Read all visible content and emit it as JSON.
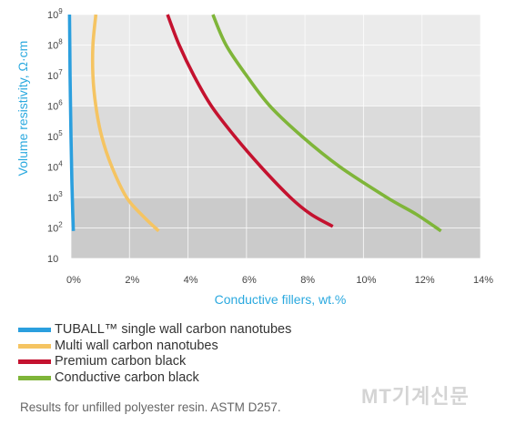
{
  "chart_data": {
    "type": "line",
    "title": "",
    "xlabel": "Conductive fillers, wt.%",
    "ylabel": "Volume resistivity, Ω·cm",
    "xlim": [
      0,
      14
    ],
    "ylim_log10": [
      1,
      9
    ],
    "y_scale": "log",
    "x_ticks": [
      "0%",
      "2%",
      "4%",
      "6%",
      "8%",
      "10%",
      "12%",
      "14%"
    ],
    "y_ticks": [
      {
        "base": "10",
        "exp": ""
      },
      {
        "base": "10",
        "exp": "2"
      },
      {
        "base": "10",
        "exp": "3"
      },
      {
        "base": "10",
        "exp": "4"
      },
      {
        "base": "10",
        "exp": "5"
      },
      {
        "base": "10",
        "exp": "6"
      },
      {
        "base": "10",
        "exp": "7"
      },
      {
        "base": "10",
        "exp": "8"
      },
      {
        "base": "10",
        "exp": "9"
      }
    ],
    "bands": [
      {
        "from": 1,
        "to": 3,
        "color": "#cbcbcb"
      },
      {
        "from": 3,
        "to": 6,
        "color": "#dbdbdb"
      },
      {
        "from": 6,
        "to": 9,
        "color": "#ebebeb"
      }
    ],
    "grid": true,
    "legend_position": "bottom",
    "series": [
      {
        "name": "TUBALL™ single wall carbon nanotubes",
        "color": "#2b9fde",
        "points": [
          [
            -0.05,
            9.0
          ],
          [
            -0.03,
            7.0
          ],
          [
            0.0,
            5.0
          ],
          [
            0.03,
            3.5
          ],
          [
            0.06,
            2.5
          ],
          [
            0.08,
            1.9
          ]
        ]
      },
      {
        "name": "Multi wall carbon nanotubes",
        "color": "#f5c462",
        "points": [
          [
            0.85,
            9.0
          ],
          [
            0.75,
            8.0
          ],
          [
            0.75,
            7.0
          ],
          [
            0.85,
            6.0
          ],
          [
            1.05,
            5.0
          ],
          [
            1.4,
            4.0
          ],
          [
            1.9,
            3.0
          ],
          [
            2.45,
            2.4
          ],
          [
            3.0,
            1.9
          ]
        ]
      },
      {
        "name": "Premium carbon black",
        "color": "#c4122f",
        "points": [
          [
            3.3,
            9.0
          ],
          [
            3.7,
            8.0
          ],
          [
            4.2,
            7.0
          ],
          [
            4.8,
            6.0
          ],
          [
            5.6,
            5.0
          ],
          [
            6.5,
            4.0
          ],
          [
            7.5,
            3.0
          ],
          [
            8.2,
            2.45
          ],
          [
            8.95,
            2.05
          ]
        ]
      },
      {
        "name": "Conductive carbon black",
        "color": "#7fb539",
        "points": [
          [
            4.85,
            9.0
          ],
          [
            5.3,
            8.0
          ],
          [
            6.0,
            7.0
          ],
          [
            6.8,
            6.0
          ],
          [
            7.9,
            5.0
          ],
          [
            9.2,
            4.0
          ],
          [
            10.8,
            3.0
          ],
          [
            11.8,
            2.45
          ],
          [
            12.65,
            1.9
          ]
        ]
      }
    ]
  },
  "note": "Results for unfilled polyester resin. ASTM D257.",
  "watermark": "MT기계신문"
}
